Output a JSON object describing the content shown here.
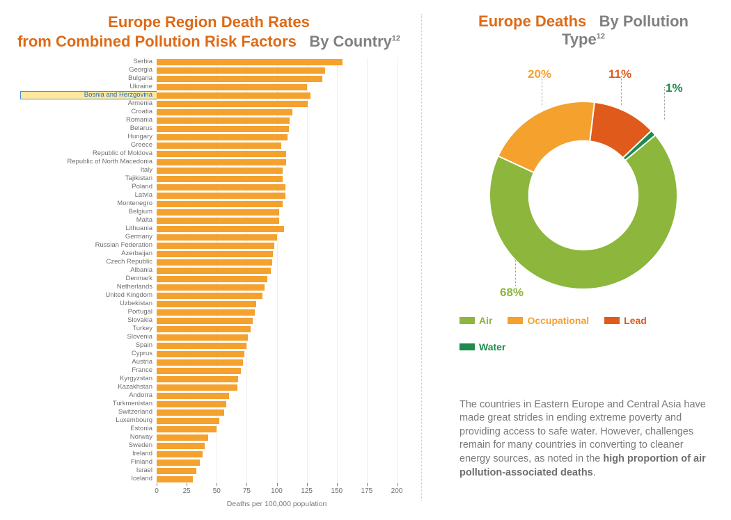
{
  "bar_chart": {
    "title_line1": "Europe Region Death Rates",
    "title_line2_a": "from Combined Pollution Risk Factors",
    "title_line2_b": "By Country",
    "sup": "12",
    "x_axis_label": "Deaths per 100,000 population",
    "xlim": [
      0,
      200
    ],
    "xtick_step": 25,
    "ticks": [
      0,
      25,
      50,
      75,
      100,
      125,
      150,
      175,
      200
    ],
    "bar_color": "#f5a12d",
    "highlight_country": "Bosnia and Herzgovina",
    "label_fontsize": 9.5,
    "countries": [
      {
        "name": "Serbia",
        "value": 155
      },
      {
        "name": "Georgia",
        "value": 140
      },
      {
        "name": "Bulgaria",
        "value": 138
      },
      {
        "name": "Ukraine",
        "value": 125
      },
      {
        "name": "Bosnia and Herzgovina",
        "value": 128
      },
      {
        "name": "Armenia",
        "value": 126
      },
      {
        "name": "Croatia",
        "value": 113
      },
      {
        "name": "Romania",
        "value": 111
      },
      {
        "name": "Belarus",
        "value": 110
      },
      {
        "name": "Hungary",
        "value": 109
      },
      {
        "name": "Greece",
        "value": 104
      },
      {
        "name": "Republic of Moldova",
        "value": 108
      },
      {
        "name": "Republic of North Macedonia",
        "value": 108
      },
      {
        "name": "Italy",
        "value": 105
      },
      {
        "name": "Tajikistan",
        "value": 105
      },
      {
        "name": "Poland",
        "value": 107
      },
      {
        "name": "Latvia",
        "value": 107
      },
      {
        "name": "Montenegro",
        "value": 105
      },
      {
        "name": "Belgium",
        "value": 102
      },
      {
        "name": "Malta",
        "value": 102
      },
      {
        "name": "Lithuania",
        "value": 106
      },
      {
        "name": "Germany",
        "value": 100
      },
      {
        "name": "Russian Federation",
        "value": 98
      },
      {
        "name": "Azerbaijan",
        "value": 97
      },
      {
        "name": "Czech Republic",
        "value": 96
      },
      {
        "name": "Albania",
        "value": 95
      },
      {
        "name": "Denmark",
        "value": 92
      },
      {
        "name": "Netherlands",
        "value": 90
      },
      {
        "name": "United Kingdom",
        "value": 88
      },
      {
        "name": "Uzbekistan",
        "value": 83
      },
      {
        "name": "Portugal",
        "value": 82
      },
      {
        "name": "Slovakia",
        "value": 80
      },
      {
        "name": "Turkey",
        "value": 78
      },
      {
        "name": "Slovenia",
        "value": 76
      },
      {
        "name": "Spain",
        "value": 75
      },
      {
        "name": "Cyprus",
        "value": 73
      },
      {
        "name": "Austria",
        "value": 72
      },
      {
        "name": "France",
        "value": 70
      },
      {
        "name": "Kyrgyzstan",
        "value": 68
      },
      {
        "name": "Kazakhstan",
        "value": 67
      },
      {
        "name": "Andorra",
        "value": 60
      },
      {
        "name": "Turkmenistan",
        "value": 58
      },
      {
        "name": "Switzerland",
        "value": 56
      },
      {
        "name": "Luxembourg",
        "value": 52
      },
      {
        "name": "Estonia",
        "value": 50
      },
      {
        "name": "Norway",
        "value": 43
      },
      {
        "name": "Sweden",
        "value": 40
      },
      {
        "name": "Ireland",
        "value": 38
      },
      {
        "name": "Finland",
        "value": 36
      },
      {
        "name": "Israel",
        "value": 33
      },
      {
        "name": "Iceland",
        "value": 30
      }
    ]
  },
  "donut": {
    "title_a": "Europe Deaths",
    "title_b": "By Pollution Type",
    "sup": "12",
    "inner_radius_pct": 58,
    "slices": [
      {
        "label": "Air",
        "value": 68,
        "color": "#8cb63c",
        "text_color": "#8cb63c"
      },
      {
        "label": "Occupational",
        "value": 20,
        "color": "#f5a12d",
        "text_color": "#f5a12d"
      },
      {
        "label": "Lead",
        "value": 11,
        "color": "#e05a1b",
        "text_color": "#e05a1b"
      },
      {
        "label": "Water",
        "value": 1,
        "color": "#1f8a4d",
        "text_color": "#1f8a4d"
      }
    ],
    "legend": [
      {
        "label": "Air",
        "color": "#8cb63c"
      },
      {
        "label": "Occupational",
        "color": "#f5a12d"
      },
      {
        "label": "Lead",
        "color": "#e05a1b"
      },
      {
        "label": "Water",
        "color": "#1f8a4d"
      }
    ]
  },
  "paragraph": {
    "text_a": "The countries in Eastern Europe and Central Asia have made great strides in ending extreme poverty and providing access to safe water. However, challenges remain for many countries in converting to cleaner energy sources, as noted in the ",
    "bold": "high proportion of air pollution-associated deaths",
    "text_b": "."
  },
  "colors": {
    "accent": "#de6a16",
    "muted": "#808080",
    "bg": "#ffffff",
    "grid": "#f0efed"
  }
}
